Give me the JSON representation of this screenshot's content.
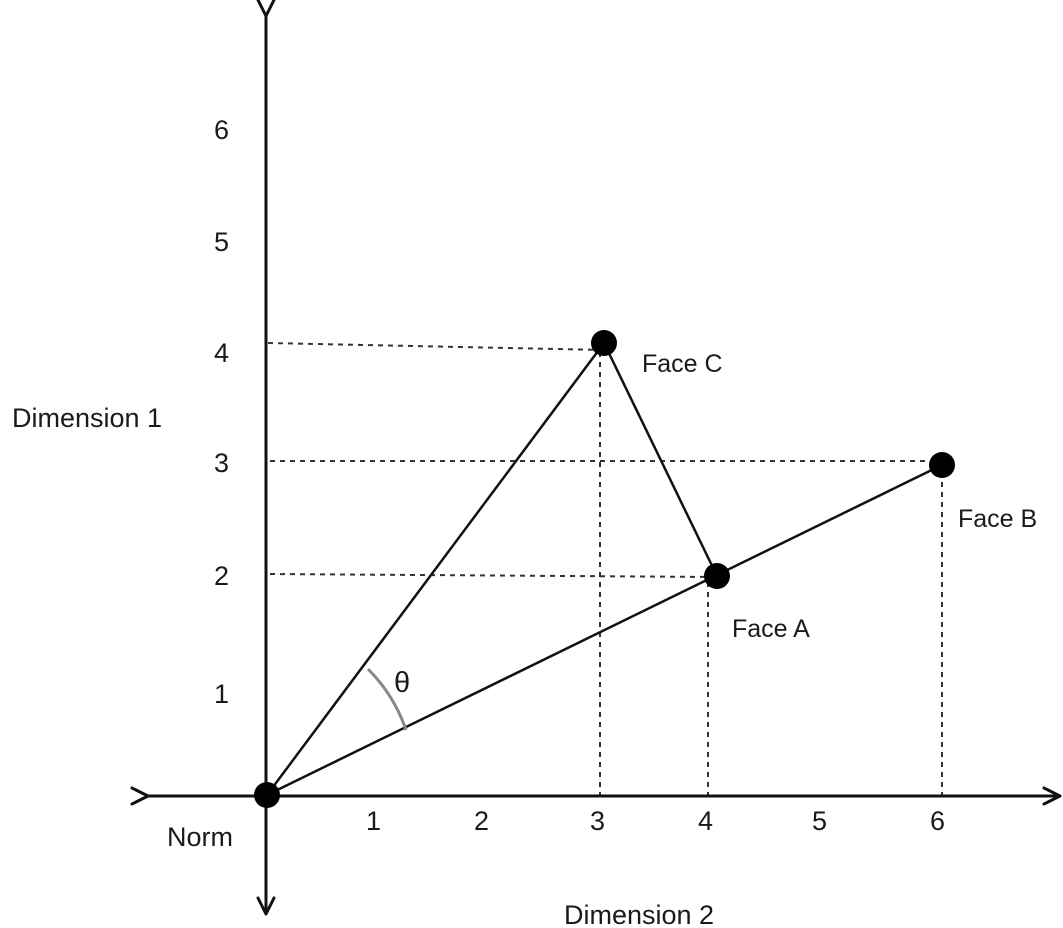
{
  "diagram": {
    "x_axis_title": "Dimension 2",
    "y_axis_title": "Dimension 1",
    "origin_label": "Norm",
    "angle_label": "θ",
    "x_ticks": [
      "1",
      "2",
      "3",
      "4",
      "5",
      "6"
    ],
    "y_ticks": [
      "1",
      "2",
      "3",
      "4",
      "5",
      "6"
    ],
    "points": [
      {
        "id": "norm",
        "x": 0,
        "y": 0
      },
      {
        "id": "face-a",
        "label": "Face A",
        "x": 4,
        "y": 2
      },
      {
        "id": "face-b",
        "label": "Face B",
        "x": 6,
        "y": 3
      },
      {
        "id": "face-c",
        "label": "Face C",
        "x": 3,
        "y": 4
      }
    ],
    "colors": {
      "line": "#111111",
      "dashed": "#333333",
      "arc": "#888888",
      "point": "#000000"
    }
  }
}
